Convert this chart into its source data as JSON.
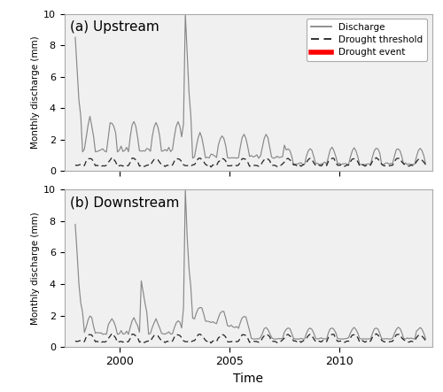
{
  "title_a": "(a) Upstream",
  "title_b": "(b) Downstream",
  "xlabel": "Time",
  "ylabel": "Monthly discharge (mm)",
  "ylim": [
    0,
    10
  ],
  "yticks": [
    0,
    2,
    4,
    6,
    8,
    10
  ],
  "xlim": [
    1997.5,
    2014.2
  ],
  "xtick_years": [
    2000,
    2005,
    2010
  ],
  "legend_labels": [
    "Discharge",
    "Drought threshold",
    "Drought event"
  ],
  "discharge_color": "#888888",
  "threshold_color": "#222222",
  "drought_color": "#FF0000",
  "background_color": "#f0f0f0",
  "panel_bg": "#f0f0f0"
}
